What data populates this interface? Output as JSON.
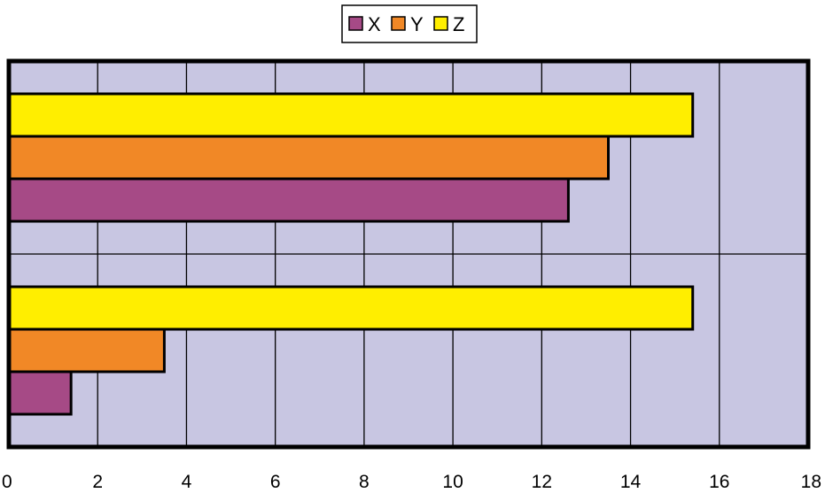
{
  "chart_data": {
    "type": "bar",
    "orientation": "horizontal",
    "title": "",
    "xlabel": "",
    "ylabel": "",
    "categories": [
      "",
      ""
    ],
    "xlim": [
      0,
      18
    ],
    "x_ticks": [
      0,
      2,
      4,
      6,
      8,
      10,
      12,
      14,
      16,
      18
    ],
    "grid": "vertical",
    "legend_position": "top-center",
    "plot_background": "#c8c6e2",
    "series": [
      {
        "name": "X",
        "color": "#a64a86",
        "values": [
          12.6,
          1.4
        ]
      },
      {
        "name": "Y",
        "color": "#f18826",
        "values": [
          13.5,
          3.5
        ]
      },
      {
        "name": "Z",
        "color": "#ffee00",
        "values": [
          15.4,
          15.4
        ]
      }
    ]
  }
}
